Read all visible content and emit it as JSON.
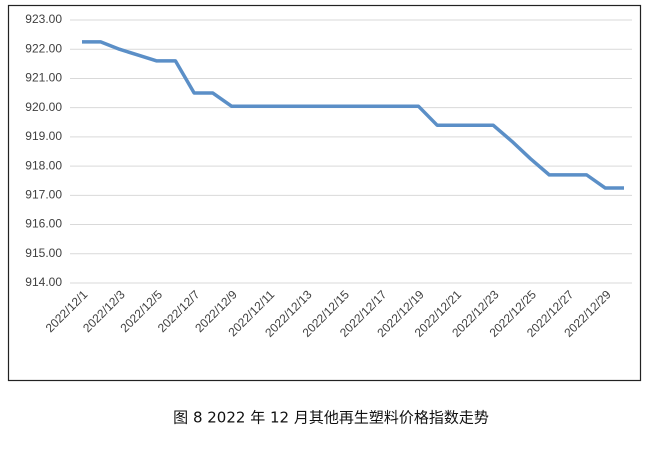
{
  "chart_data": {
    "type": "line",
    "title": "图 8  2022 年 12 月其他再生塑料价格指数走势",
    "categories": [
      "2022/12/1",
      null,
      "2022/12/3",
      null,
      "2022/12/5",
      null,
      "2022/12/7",
      null,
      "2022/12/9",
      null,
      "2022/12/11",
      null,
      "2022/12/13",
      null,
      "2022/12/15",
      null,
      "2022/12/17",
      null,
      "2022/12/19",
      null,
      "2022/12/21",
      null,
      "2022/12/23",
      null,
      "2022/12/25",
      null,
      "2022/12/27",
      null,
      "2022/12/29",
      null
    ],
    "values": [
      922.25,
      922.25,
      922.0,
      921.8,
      921.6,
      921.6,
      920.5,
      920.5,
      920.05,
      920.05,
      920.05,
      920.05,
      920.05,
      920.05,
      920.05,
      920.05,
      920.05,
      920.05,
      920.05,
      919.4,
      919.4,
      919.4,
      919.4,
      918.85,
      918.25,
      917.7,
      917.7,
      917.7,
      917.25,
      917.25
    ],
    "color": "#5b8fc7",
    "ylim": [
      914,
      923
    ],
    "yticks": [
      {
        "value": 914,
        "label": "914.00"
      },
      {
        "value": 915,
        "label": "915.00"
      },
      {
        "value": 916,
        "label": "916.00"
      },
      {
        "value": 917,
        "label": "917.00"
      },
      {
        "value": 918,
        "label": "918.00"
      },
      {
        "value": 919,
        "label": "919.00"
      },
      {
        "value": 920,
        "label": "920.00"
      },
      {
        "value": 921,
        "label": "921.00"
      },
      {
        "value": 922,
        "label": "922.00"
      },
      {
        "value": 923,
        "label": "923.00"
      }
    ],
    "grid": true
  }
}
